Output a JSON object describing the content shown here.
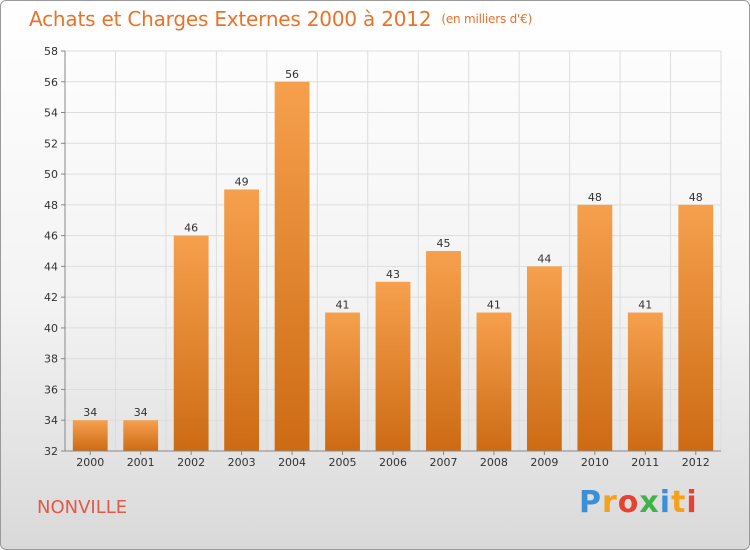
{
  "chart_data": {
    "type": "bar",
    "title": "Achats et Charges Externes 2000 à 2012",
    "subtitle": "(en milliers d'€)",
    "categories": [
      "2000",
      "2001",
      "2002",
      "2003",
      "2004",
      "2005",
      "2006",
      "2007",
      "2008",
      "2009",
      "2010",
      "2011",
      "2012"
    ],
    "values": [
      34,
      34,
      46,
      49,
      56,
      41,
      43,
      45,
      41,
      44,
      48,
      41,
      48
    ],
    "ylim": [
      32,
      58
    ],
    "yticks": [
      32,
      34,
      36,
      38,
      40,
      42,
      44,
      46,
      48,
      50,
      52,
      54,
      56,
      58
    ],
    "grid": true,
    "bar_color_top": "#f6a04d",
    "bar_color_bottom": "#cd6b14"
  },
  "footer": {
    "city": "NONVILLE",
    "logo_letters": [
      "P",
      "r",
      "o",
      "x",
      "i",
      "t",
      "i"
    ]
  }
}
